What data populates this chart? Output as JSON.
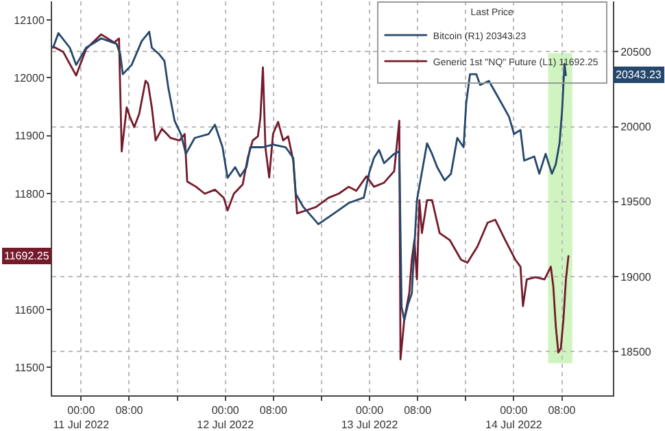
{
  "chart_data": {
    "type": "line",
    "legend_title": "Last Price",
    "series": [
      {
        "name": "Bitcoin (R1) 20343.23",
        "color": "#24476b",
        "axis": "y2",
        "x": [
          "2022-07-10T19:20",
          "2022-07-10T20:13",
          "2022-07-10T22:07",
          "2022-07-10T23:10",
          "2022-07-11T00:50",
          "2022-07-11T03:20",
          "2022-07-11T05:53",
          "2022-07-11T06:31",
          "2022-07-11T06:56",
          "2022-07-11T08:24",
          "2022-07-11T10:05",
          "2022-07-11T11:20",
          "2022-07-11T11:46",
          "2022-07-11T13:01",
          "2022-07-11T13:52",
          "2022-07-11T14:30",
          "2022-07-11T15:33",
          "2022-07-11T16:36",
          "2022-07-11T17:26",
          "2022-07-11T18:54",
          "2022-07-11T21:13",
          "2022-07-11T22:16",
          "2022-07-11T23:32",
          "2022-07-12T00:22",
          "2022-07-12T01:38",
          "2022-07-12T02:28",
          "2022-07-12T03:31",
          "2022-07-12T04:09",
          "2022-07-12T06:15",
          "2022-07-12T07:56",
          "2022-07-12T10:02",
          "2022-07-12T11:18",
          "2022-07-12T11:43",
          "2022-07-12T12:58",
          "2022-07-12T15:29",
          "2022-07-12T18:01",
          "2022-07-12T20:32",
          "2022-07-12T23:03",
          "2022-07-12T23:54",
          "2022-07-13T00:44",
          "2022-07-13T01:35",
          "2022-07-13T02:25",
          "2022-07-13T04:06",
          "2022-07-13T04:57",
          "2022-07-13T05:20",
          "2022-07-13T05:47",
          "2022-07-13T06:25",
          "2022-07-13T07:02",
          "2022-07-13T07:53",
          "2022-07-13T09:34",
          "2022-07-13T10:24",
          "2022-07-13T11:15",
          "2022-07-13T12:30",
          "2022-07-13T13:33",
          "2022-07-13T14:36",
          "2022-07-13T15:39",
          "2022-07-13T16:05",
          "2022-07-13T16:43",
          "2022-07-13T17:46",
          "2022-07-13T18:24",
          "2022-07-13T19:52",
          "2022-07-13T21:07",
          "2022-07-13T23:13",
          "2022-07-14T00:03",
          "2022-07-14T01:07",
          "2022-07-14T01:44",
          "2022-07-14T03:25",
          "2022-07-14T04:15",
          "2022-07-14T05:18",
          "2022-07-14T06:21",
          "2022-07-14T06:59",
          "2022-07-14T07:37",
          "2022-07-14T08:02",
          "2022-07-14T08:27",
          "2022-07-14T08:40"
        ],
        "values": [
          20527,
          20624,
          20527,
          20412,
          20527,
          20589,
          20553,
          20482,
          20350,
          20412,
          20571,
          20633,
          20527,
          20482,
          20438,
          20261,
          20040,
          19951,
          19819,
          19925,
          19951,
          20013,
          19863,
          19659,
          19730,
          19668,
          19730,
          19863,
          19863,
          19881,
          19863,
          19792,
          19553,
          19465,
          19350,
          19420,
          19491,
          19527,
          19686,
          19792,
          19845,
          19757,
          19819,
          19836,
          18799,
          18710,
          18817,
          18888,
          19509,
          19889,
          19819,
          19730,
          19642,
          19686,
          19925,
          19863,
          20155,
          20350,
          20350,
          20279,
          20305,
          20217,
          20066,
          19951,
          19978,
          19774,
          19801,
          19686,
          19819,
          19686,
          19748,
          19889,
          20102,
          20420,
          20343.23
        ]
      },
      {
        "name": "Generic 1st \"NQ\" Future (L1) 11692.25",
        "color": "#741a2b",
        "x": [
          "2022-07-10T19:20",
          "2022-07-10T21:00",
          "2022-07-10T23:10",
          "2022-07-11T00:50",
          "2022-07-11T03:20",
          "2022-07-11T05:30",
          "2022-07-11T06:18",
          "2022-07-11T06:45",
          "2022-07-11T07:35",
          "2022-07-11T08:10",
          "2022-07-11T08:50",
          "2022-07-11T09:40",
          "2022-07-11T10:43",
          "2022-07-11T11:08",
          "2022-07-11T11:46",
          "2022-07-11T12:24",
          "2022-07-11T13:27",
          "2022-07-11T14:55",
          "2022-07-11T16:23",
          "2022-07-11T17:14",
          "2022-07-11T17:39",
          "2022-07-11T19:07",
          "2022-07-11T20:35",
          "2022-07-11T22:16",
          "2022-07-11T23:44",
          "2022-07-12T00:22",
          "2022-07-12T01:25",
          "2022-07-12T02:53",
          "2022-07-12T03:44",
          "2022-07-12T04:34",
          "2022-07-12T05:25",
          "2022-07-12T05:50",
          "2022-07-12T06:15",
          "2022-07-12T06:40",
          "2022-07-12T07:18",
          "2022-07-12T07:56",
          "2022-07-12T08:47",
          "2022-07-12T09:37",
          "2022-07-12T10:27",
          "2022-07-12T11:18",
          "2022-07-12T11:56",
          "2022-07-12T13:24",
          "2022-07-12T15:05",
          "2022-07-12T17:11",
          "2022-07-12T18:52",
          "2022-07-12T20:32",
          "2022-07-12T21:48",
          "2022-07-12T23:29",
          "2022-07-13T00:44",
          "2022-07-13T02:25",
          "2022-07-13T04:06",
          "2022-07-13T04:57",
          "2022-07-13T05:09",
          "2022-07-13T05:47",
          "2022-07-13T06:37",
          "2022-07-13T07:02",
          "2022-07-13T07:28",
          "2022-07-13T07:53",
          "2022-07-13T08:18",
          "2022-07-13T08:43",
          "2022-07-13T09:34",
          "2022-07-13T10:24",
          "2022-07-13T11:40",
          "2022-07-13T13:21",
          "2022-07-13T15:14",
          "2022-07-13T16:17",
          "2022-07-13T17:58",
          "2022-07-13T19:39",
          "2022-07-13T20:55",
          "2022-07-13T22:35",
          "2022-07-14T00:16",
          "2022-07-14T01:07",
          "2022-07-14T01:32",
          "2022-07-14T02:10",
          "2022-07-14T03:38",
          "2022-07-14T05:07",
          "2022-07-14T06:10",
          "2022-07-14T06:35",
          "2022-07-14T07:00",
          "2022-07-14T07:25",
          "2022-07-14T07:50",
          "2022-07-14T08:16",
          "2022-07-14T08:41",
          "2022-07-14T09:06"
        ],
        "values": [
          12054,
          12045,
          12004,
          12050,
          12075,
          12061,
          12068,
          11873,
          11949,
          11931,
          11915,
          11938,
          11995,
          11990,
          11949,
          11892,
          11912,
          11896,
          11892,
          11903,
          11821,
          11812,
          11800,
          11807,
          11793,
          11771,
          11800,
          11816,
          11862,
          11892,
          11899,
          11931,
          12018,
          11880,
          11828,
          11903,
          11924,
          11892,
          11899,
          11857,
          11766,
          11771,
          11777,
          11793,
          11800,
          11812,
          11805,
          11830,
          11812,
          11819,
          11839,
          11926,
          11514,
          11583,
          11629,
          11686,
          11720,
          11652,
          11789,
          11732,
          11789,
          11789,
          11732,
          11720,
          11686,
          11681,
          11709,
          11750,
          11755,
          11720,
          11686,
          11674,
          11606,
          11652,
          11656,
          11652,
          11674,
          11640,
          11571,
          11526,
          11533,
          11583,
          11652,
          11692.25
        ]
      }
    ],
    "xlim": [
      "2022-07-10T19:10",
      "2022-07-14T16:30"
    ],
    "xticks": [
      {
        "value": "2022-07-11T00:00",
        "label": "00:00\n11 Jul 2022"
      },
      {
        "value": "2022-07-11T08:00",
        "label": "08:00"
      },
      {
        "value": "2022-07-11T16:00",
        "label": null
      },
      {
        "value": "2022-07-12T00:00",
        "label": "00:00\n12 Jul 2022"
      },
      {
        "value": "2022-07-12T08:00",
        "label": "08:00"
      },
      {
        "value": "2022-07-12T16:00",
        "label": null
      },
      {
        "value": "2022-07-13T00:00",
        "label": "00:00\n13 Jul 2022"
      },
      {
        "value": "2022-07-13T08:00",
        "label": "08:00"
      },
      {
        "value": "2022-07-13T16:00",
        "label": null
      },
      {
        "value": "2022-07-14T00:00",
        "label": "00:00\n14 Jul 2022"
      },
      {
        "value": "2022-07-14T08:00",
        "label": "08:00"
      }
    ],
    "ylim": [
      11452,
      12132
    ],
    "yticks": [
      11500,
      11600,
      11800,
      11900,
      12000,
      12100
    ],
    "y2lim": [
      18208,
      20836
    ],
    "y2ticks": [
      18500,
      19000,
      19500,
      20000,
      20500
    ],
    "bands": [
      {
        "axis": "x",
        "from": "2022-07-14T05:57",
        "to": "2022-07-14T09:31",
        "color": "#66dd33"
      }
    ],
    "annotations": [
      "20343.23",
      "11692.25"
    ],
    "grid": true,
    "legend": "top right"
  }
}
